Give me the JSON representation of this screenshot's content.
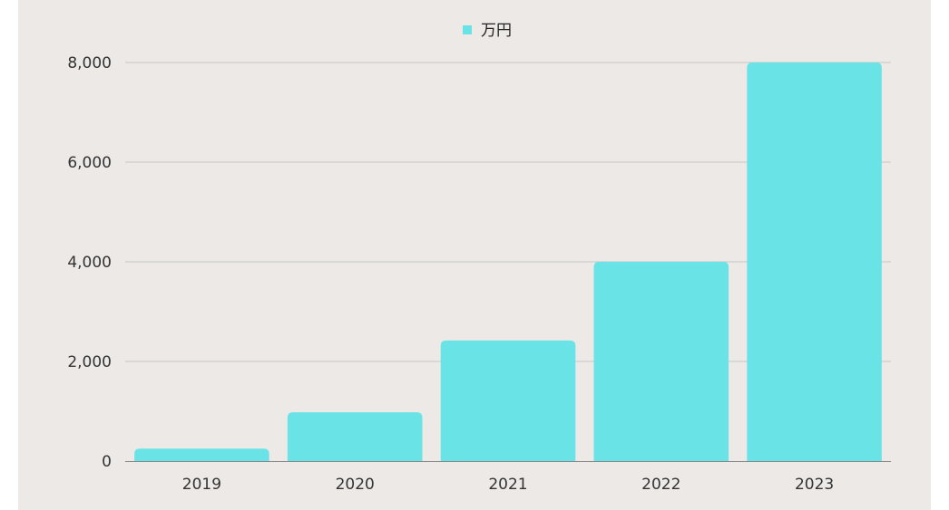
{
  "chart_data": {
    "type": "bar",
    "categories": [
      "2019",
      "2020",
      "2021",
      "2022",
      "2023"
    ],
    "series": [
      {
        "name": "万円",
        "values": [
          250,
          980,
          2420,
          4000,
          8000
        ]
      }
    ],
    "ylim": [
      0,
      8000
    ],
    "yticks": [
      0,
      2000,
      4000,
      6000,
      8000
    ],
    "ytick_labels": [
      "0",
      "2,000",
      "4,000",
      "6,000",
      "8,000"
    ],
    "grid": true,
    "legend_position": "top-center",
    "colors": {
      "bar": "#6ae3e7",
      "grid": "#c9c6c4",
      "axis": "#8a8786",
      "background": "#ece9e7"
    }
  }
}
